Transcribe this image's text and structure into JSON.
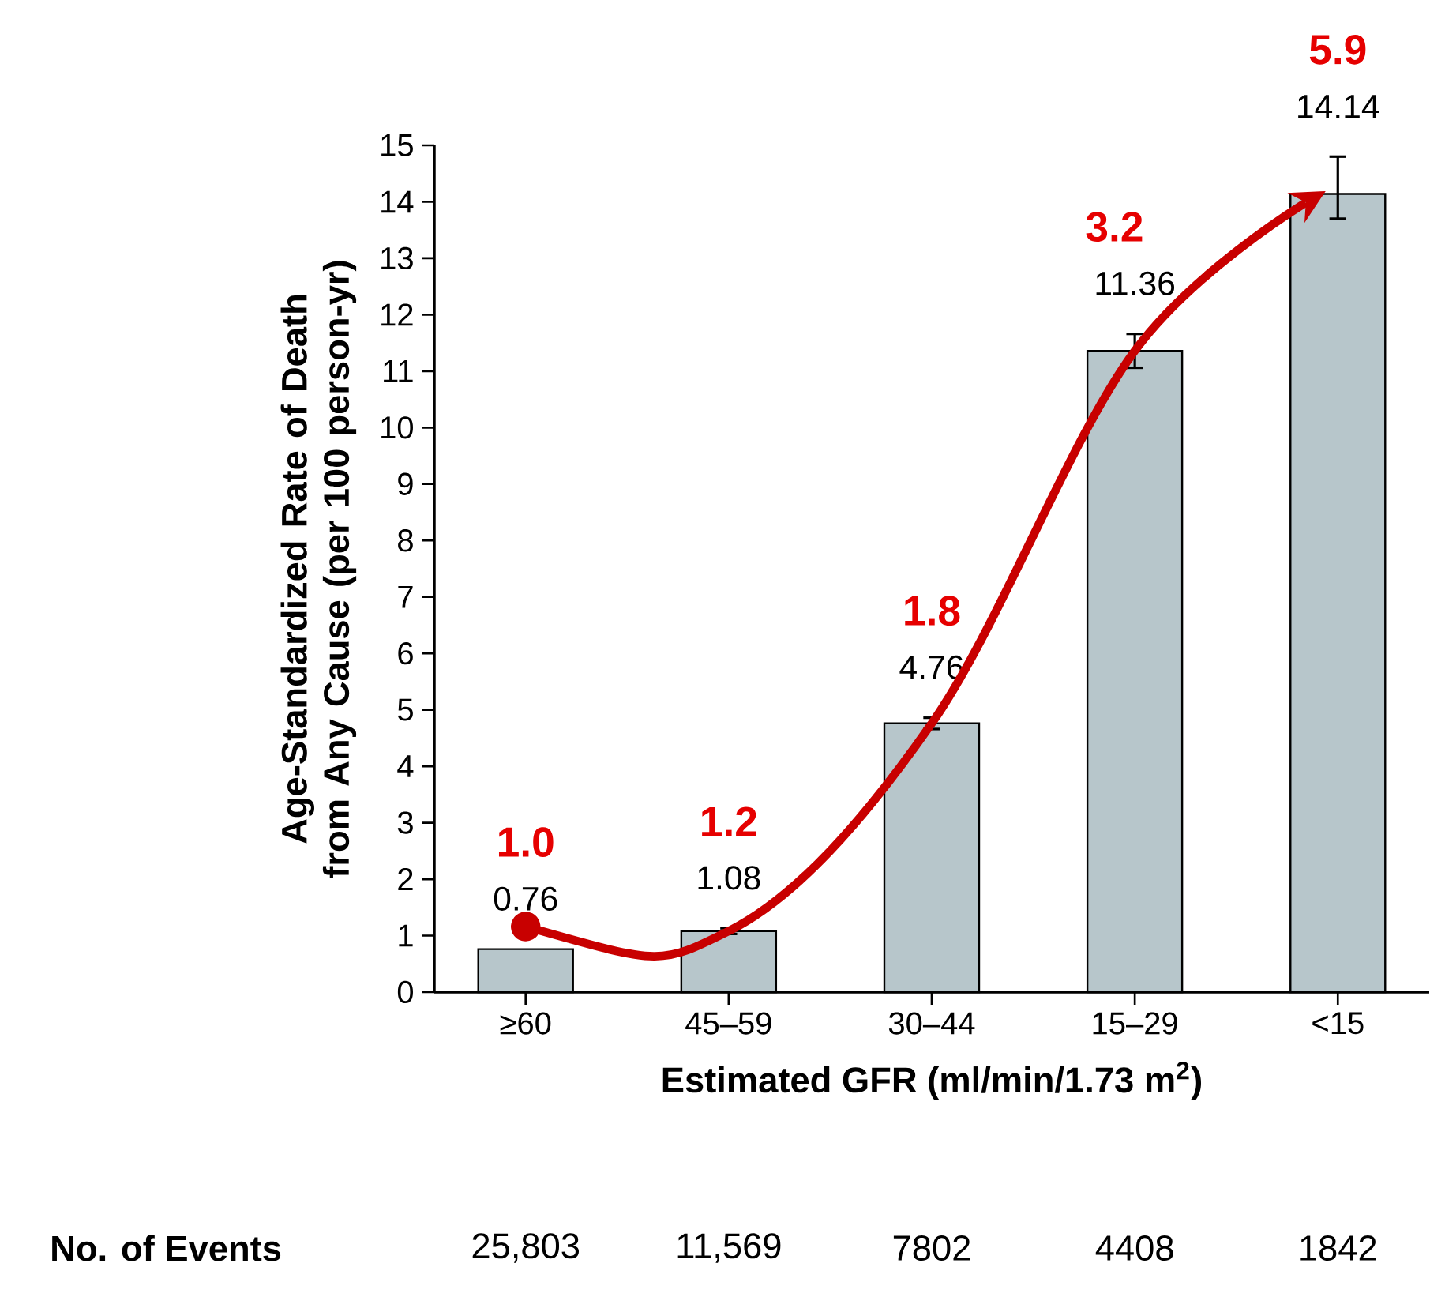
{
  "chart_data": {
    "type": "bar",
    "xlabel": "Estimated GFR (ml/min/1.73 m$^{2}$)",
    "ylabel": "Age-Standardized Rate of Death from Any Cause (per 100 person-yr)",
    "categories": [
      "≥60",
      "45–59",
      "30–44",
      "15–29",
      "<15"
    ],
    "values": [
      0.76,
      1.08,
      4.76,
      11.36,
      14.14
    ],
    "errors": [
      null,
      0.05,
      0.1,
      0.3,
      [
        13.7,
        14.8
      ]
    ],
    "color": "#b7c6cb",
    "data_labels": true,
    "ylim": [
      0,
      15
    ],
    "yticks": [
      0,
      1,
      2,
      3,
      4,
      5,
      6,
      7,
      8,
      9,
      10,
      11,
      12,
      13,
      14,
      15
    ],
    "grid": false,
    "annotations": [
      "1.0",
      "1.2",
      "1.8",
      "3.2",
      "5.9",
      "No. of Events",
      "25,803",
      "11,569",
      "7802",
      "4408",
      "1842"
    ]
  }
}
